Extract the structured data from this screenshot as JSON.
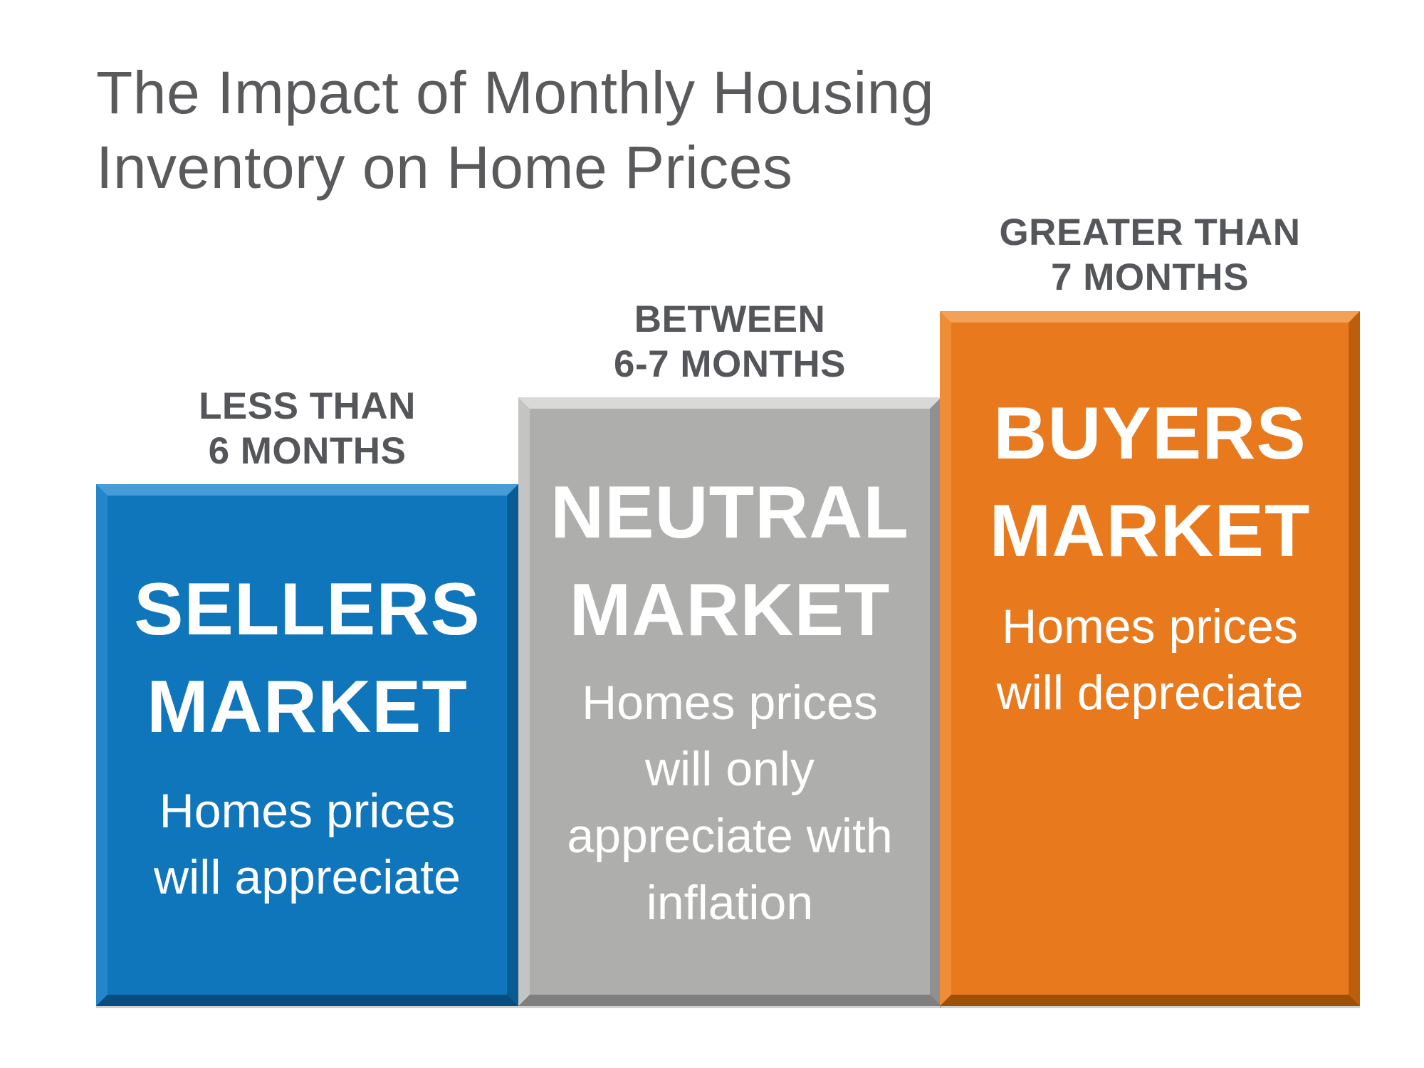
{
  "title": "The Impact of Monthly Housing\nInventory on Home Prices",
  "colors": {
    "sellers_blue": "#0F76BC",
    "neutral_gray": "#AEAEAD",
    "buyers_orange": "#E8791D",
    "heading_gray": "#5A5A5D",
    "label_gray": "#55565A",
    "bar_text_white": "#FFFFFF"
  },
  "bars": [
    {
      "inventory_label": "LESS THAN\n6 MONTHS",
      "market_name": "SELLERS\nMARKET",
      "description": "Homes prices\nwill appreciate",
      "color": "#0F76BC"
    },
    {
      "inventory_label": "BETWEEN\n6-7 MONTHS",
      "market_name": "NEUTRAL\nMARKET",
      "description": "Homes prices\nwill only\nappreciate with\ninflation",
      "color": "#AEAEAD"
    },
    {
      "inventory_label": "GREATER THAN\n7 MONTHS",
      "market_name": "BUYERS\nMARKET",
      "description": "Homes prices\nwill depreciate",
      "color": "#E8791D"
    }
  ]
}
